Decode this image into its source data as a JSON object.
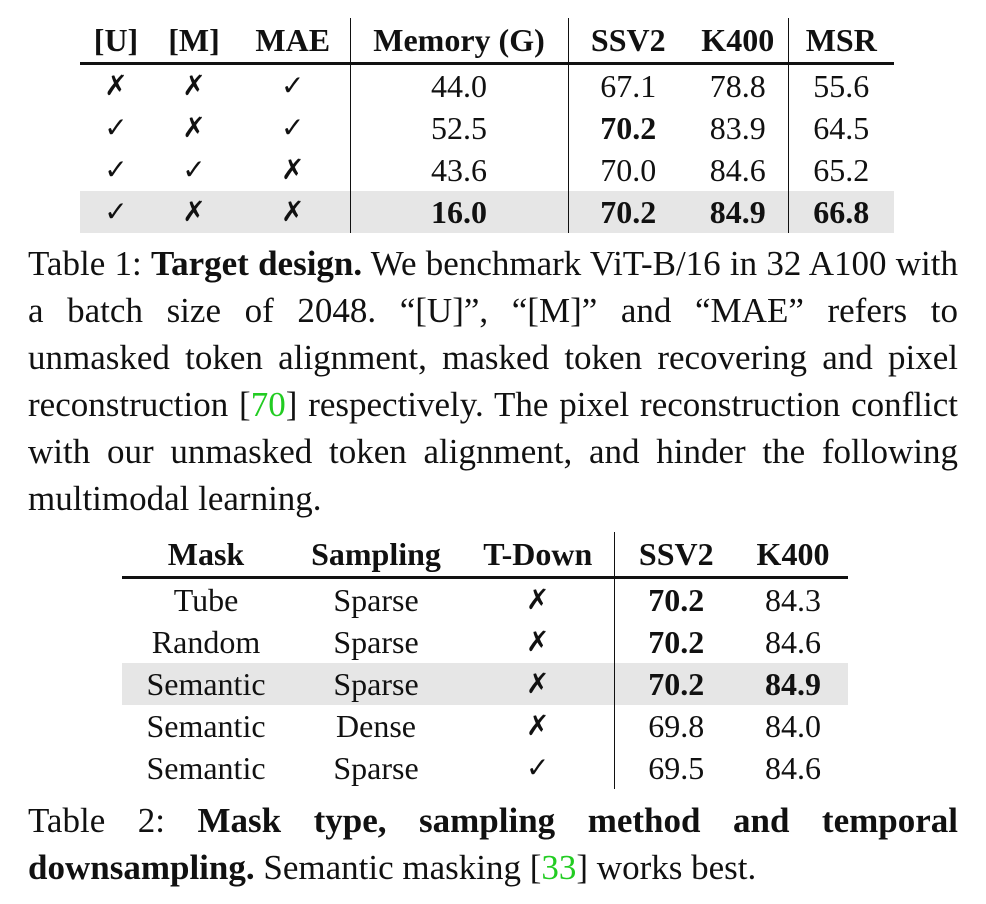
{
  "table1": {
    "headers": [
      "[U]",
      "[M]",
      "MAE",
      "Memory (G)",
      "SSV2",
      "K400",
      "MSR"
    ],
    "rows": [
      [
        "✗",
        "✗",
        "✓",
        "44.0",
        "67.1",
        "78.8",
        "55.6"
      ],
      [
        "✓",
        "✗",
        "✓",
        "52.5",
        "70.2",
        "83.9",
        "64.5"
      ],
      [
        "✓",
        "✓",
        "✗",
        "43.6",
        "70.0",
        "84.6",
        "65.2"
      ],
      [
        "✓",
        "✗",
        "✗",
        "16.0",
        "70.2",
        "84.9",
        "66.8"
      ]
    ],
    "caption": {
      "prefix": "Table 1: ",
      "bold": "Target design.",
      "text_a": " We benchmark ViT-B/16 in 32 A100 with a batch size of 2048. “[U]”, “[M]” and “MAE” refers to unmasked token alignment, masked token recovering and pixel reconstruction [",
      "cite": "70",
      "text_b": "] respectively. The pixel reconstruction conflict with our unmasked token alignment, and hinder the following multimodal learning."
    }
  },
  "table2": {
    "headers": [
      "Mask",
      "Sampling",
      "T-Down",
      "SSV2",
      "K400"
    ],
    "rows": [
      [
        "Tube",
        "Sparse",
        "✗",
        "70.2",
        "84.3"
      ],
      [
        "Random",
        "Sparse",
        "✗",
        "70.2",
        "84.6"
      ],
      [
        "Semantic",
        "Sparse",
        "✗",
        "70.2",
        "84.9"
      ],
      [
        "Semantic",
        "Dense",
        "✗",
        "69.8",
        "84.0"
      ],
      [
        "Semantic",
        "Sparse",
        "✓",
        "69.5",
        "84.6"
      ]
    ],
    "caption": {
      "prefix": "Table 2: ",
      "bold": "Mask type, sampling method and temporal downsampling.",
      "text_a": " Semantic masking [",
      "cite": "33",
      "text_b": "] works best."
    }
  },
  "colors": {
    "highlight_row": "#e6e6e6",
    "citation": "#22cc22",
    "text": "#111111"
  }
}
